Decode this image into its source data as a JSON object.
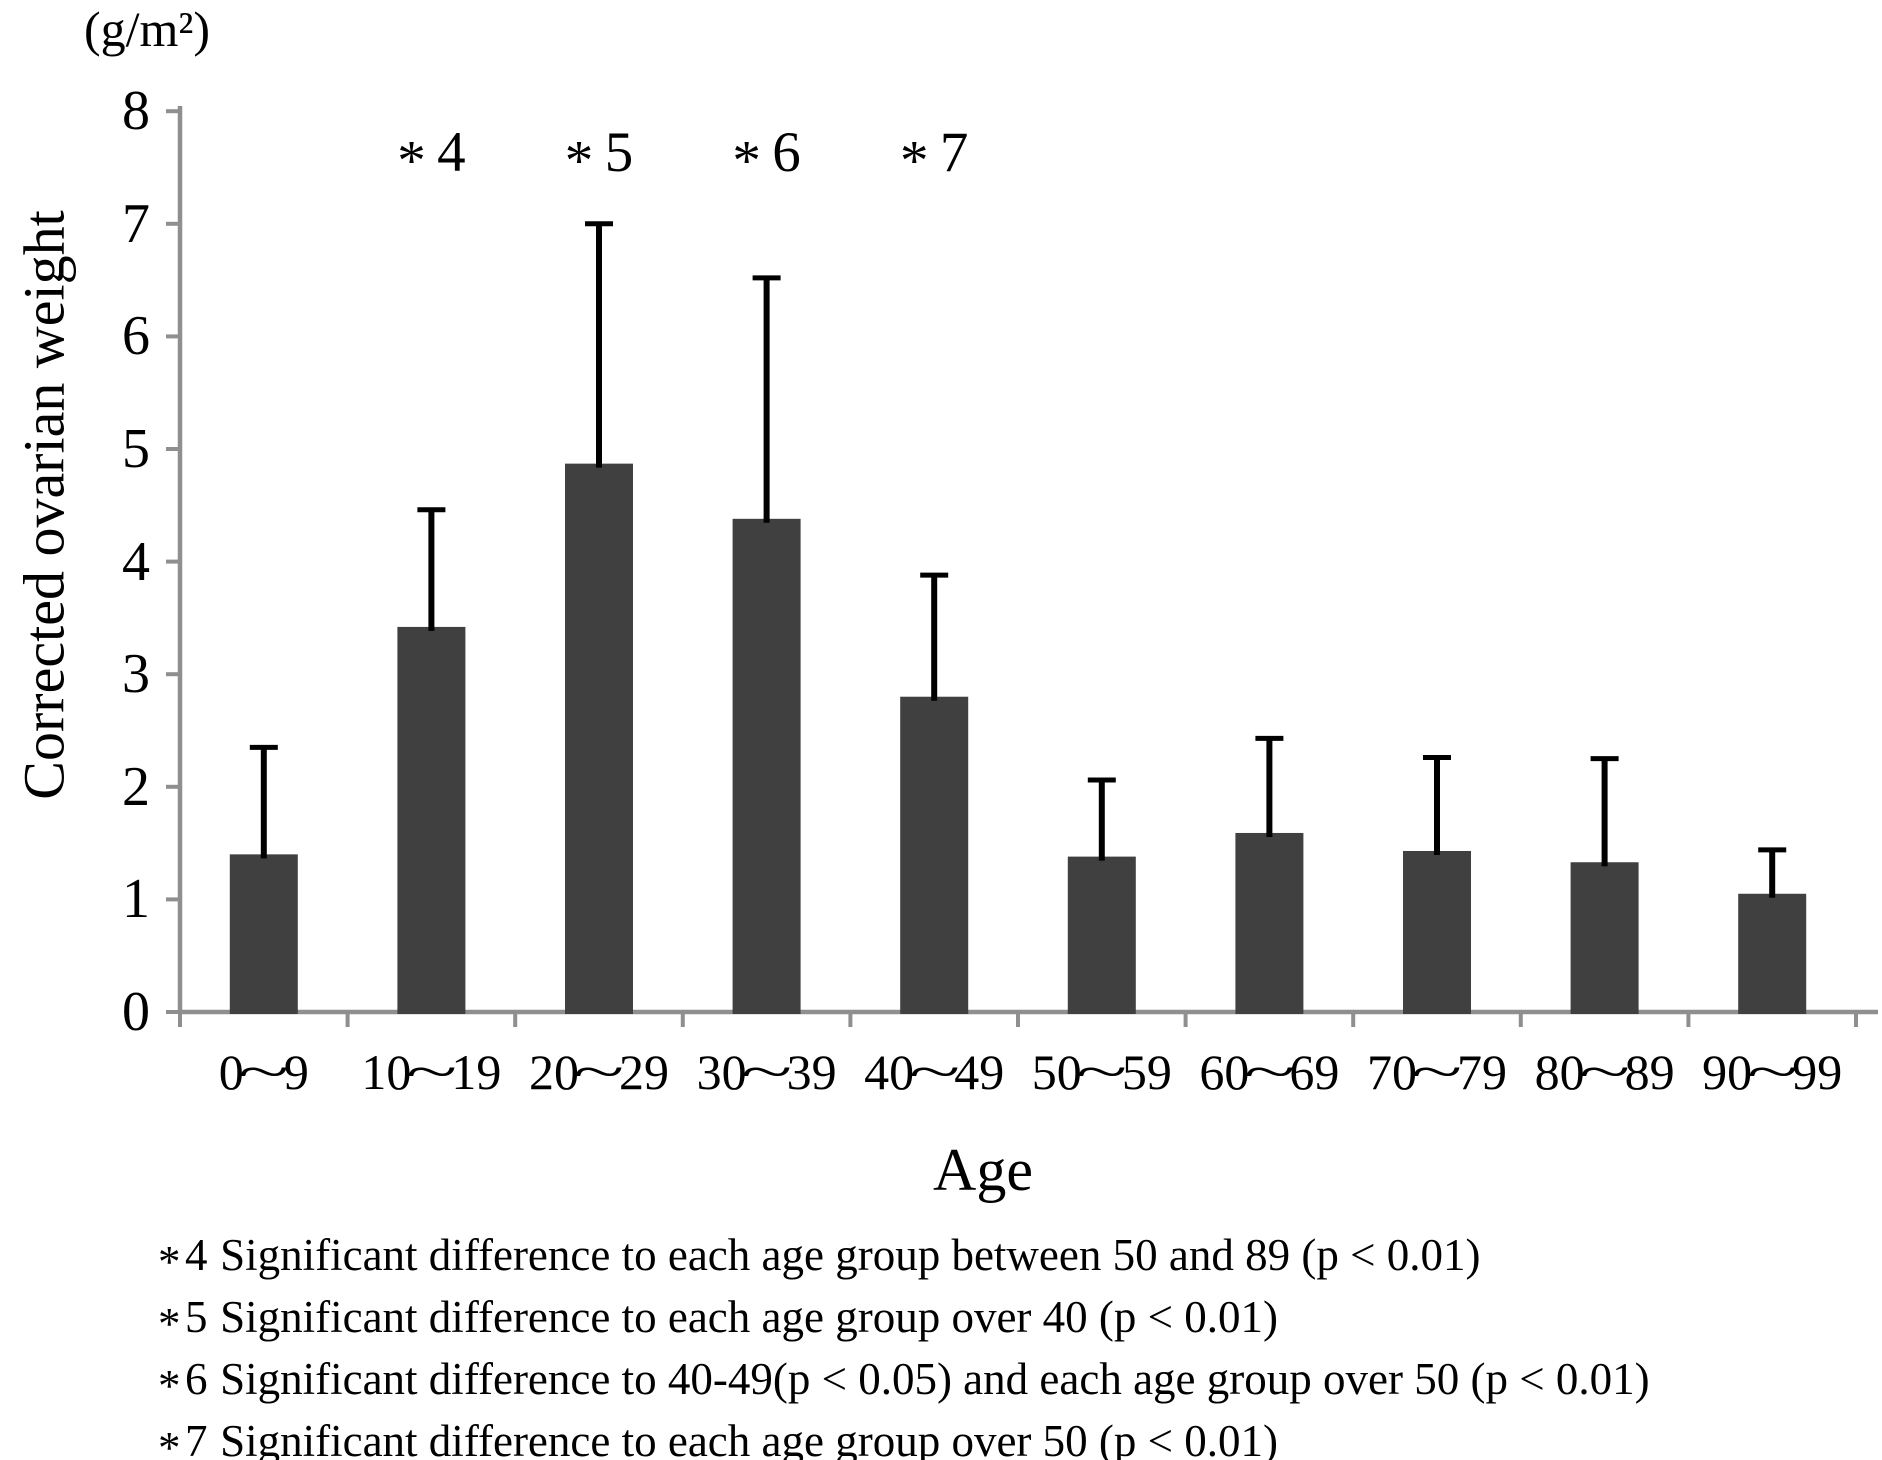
{
  "figure": {
    "unit_label": "(g/m²)",
    "y_axis_title": "Corrected ovarian weight",
    "x_axis_title": "Age"
  },
  "chart_data": {
    "type": "bar",
    "title": "",
    "unit": "(g/m²)",
    "xlabel": "Age",
    "ylabel": "Corrected ovarian weight",
    "ylim": [
      0,
      8
    ],
    "y_ticks": [
      0,
      1,
      2,
      3,
      4,
      5,
      6,
      7,
      8
    ],
    "grid": false,
    "legend": "none",
    "bar_color": "#404040",
    "axis_color": "#8f8f8f",
    "error_color": "#000000",
    "categories": [
      "0~9",
      "10~19",
      "20~29",
      "30~39",
      "40~49",
      "50~59",
      "60~69",
      "70~79",
      "80~89",
      "90~99"
    ],
    "values": [
      1.4,
      3.42,
      4.87,
      4.38,
      2.8,
      1.38,
      1.59,
      1.43,
      1.33,
      1.05
    ],
    "errors_upper": [
      0.95,
      1.04,
      2.13,
      2.14,
      1.08,
      0.68,
      0.84,
      0.83,
      0.92,
      0.39
    ],
    "annotations": [
      {
        "label": "*4",
        "category_index": 1
      },
      {
        "label": "*5",
        "category_index": 2
      },
      {
        "label": "*6",
        "category_index": 3
      },
      {
        "label": "*7",
        "category_index": 4
      }
    ]
  },
  "footnotes": [
    {
      "marker": "*4",
      "text": "Significant difference to each age group between 50 and 89 (p < 0.01)"
    },
    {
      "marker": "*5",
      "text": "Significant difference to each age group over 40 (p < 0.01)"
    },
    {
      "marker": "*6",
      "text": "Significant difference to 40-49(p < 0.05) and each age group over 50 (p < 0.01)"
    },
    {
      "marker": "*7",
      "text": "Significant difference to each age group over 50 (p < 0.01)"
    }
  ]
}
